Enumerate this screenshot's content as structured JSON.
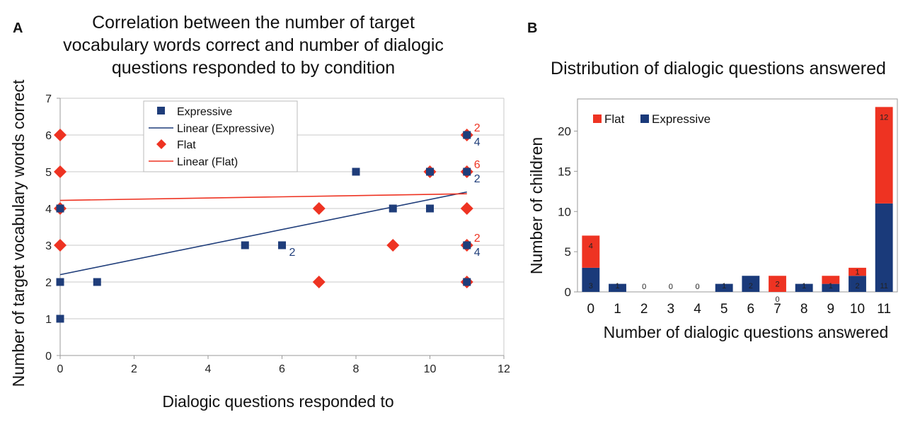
{
  "chart_data": [
    {
      "panel_label": "A",
      "type": "scatter",
      "title_lines": [
        "Correlation between the number of target",
        "vocabulary words correct and number of dialogic",
        "questions responded to by condition"
      ],
      "xlabel": "Dialogic questions responded to",
      "ylabel": "Number of target vocabulary words correct",
      "xlim": [
        0,
        12
      ],
      "ylim": [
        0,
        7
      ],
      "xticks": [
        "0",
        "2",
        "4",
        "6",
        "8",
        "10",
        "12"
      ],
      "yticks": [
        "0",
        "1",
        "2",
        "3",
        "4",
        "5",
        "6",
        "7"
      ],
      "grid": true,
      "legend_position": "top-center",
      "legend": [
        "Expressive",
        "Linear (Expressive)",
        "Flat",
        "Linear (Flat)"
      ],
      "series": [
        {
          "name": "Flat",
          "marker": "diamond",
          "color": "#ee3322",
          "points": [
            [
              0,
              6
            ],
            [
              0,
              5
            ],
            [
              0,
              4
            ],
            [
              0,
              3
            ],
            [
              7,
              4
            ],
            [
              7,
              2
            ],
            [
              9,
              3
            ],
            [
              10,
              5
            ],
            [
              11,
              6
            ],
            [
              11,
              5
            ],
            [
              11,
              4
            ],
            [
              11,
              3
            ],
            [
              11,
              2
            ]
          ]
        },
        {
          "name": "Expressive",
          "marker": "square",
          "color": "#1f3d7a",
          "points": [
            [
              0,
              4
            ],
            [
              0,
              2
            ],
            [
              0,
              1
            ],
            [
              1,
              2
            ],
            [
              5,
              3
            ],
            [
              6,
              3
            ],
            [
              8,
              5
            ],
            [
              9,
              4
            ],
            [
              10,
              5
            ],
            [
              10,
              4
            ],
            [
              11,
              6
            ],
            [
              11,
              5
            ],
            [
              11,
              3
            ],
            [
              11,
              2
            ]
          ]
        }
      ],
      "trendlines": [
        {
          "name": "Linear (Expressive)",
          "color": "#1f3d7a",
          "x": [
            0,
            11
          ],
          "y": [
            2.2,
            4.45
          ]
        },
        {
          "name": "Linear (Flat)",
          "color": "#ee3322",
          "x": [
            0,
            11
          ],
          "y": [
            4.22,
            4.4
          ]
        }
      ],
      "annotations": [
        {
          "text": "2",
          "x": 6,
          "y": 3,
          "series": "Expressive",
          "side": "below"
        },
        {
          "text": "2",
          "x": 11,
          "y": 6,
          "series": "Flat",
          "side": "above"
        },
        {
          "text": "4",
          "x": 11,
          "y": 6,
          "series": "Expressive",
          "side": "below"
        },
        {
          "text": "6",
          "x": 11,
          "y": 5,
          "series": "Flat",
          "side": "above"
        },
        {
          "text": "2",
          "x": 11,
          "y": 5,
          "series": "Expressive",
          "side": "below"
        },
        {
          "text": "2",
          "x": 11,
          "y": 3,
          "series": "Flat",
          "side": "above"
        },
        {
          "text": "4",
          "x": 11,
          "y": 3,
          "series": "Expressive",
          "side": "below"
        }
      ]
    },
    {
      "panel_label": "B",
      "type": "bar",
      "stacked": true,
      "title": "Distribution of dialogic questions answered",
      "xlabel": "Number of dialogic questions answered",
      "ylabel": "Number of children",
      "categories": [
        "0",
        "1",
        "2",
        "3",
        "4",
        "5",
        "6",
        "7",
        "8",
        "9",
        "10",
        "11"
      ],
      "ylim": [
        0,
        24
      ],
      "yticks": [
        "0",
        "5",
        "10",
        "15",
        "20"
      ],
      "grid": false,
      "legend_position": "top-left",
      "series": [
        {
          "name": "Expressive",
          "color": "#1a3a7a",
          "values": [
            3,
            1,
            0,
            0,
            0,
            1,
            2,
            0,
            1,
            1,
            2,
            11
          ]
        },
        {
          "name": "Flat",
          "color": "#ee3322",
          "values": [
            4,
            0,
            0,
            0,
            0,
            0,
            0,
            2,
            0,
            1,
            1,
            12
          ]
        }
      ],
      "bar_labels": {
        "Expressive": [
          "3",
          "1",
          "0",
          "0",
          "0",
          "1",
          "2",
          "0",
          "1",
          "1",
          "2",
          "11"
        ],
        "Flat": [
          "4",
          "",
          "",
          "",
          "",
          "",
          "",
          "2",
          "",
          "",
          "1",
          "12"
        ]
      }
    }
  ]
}
